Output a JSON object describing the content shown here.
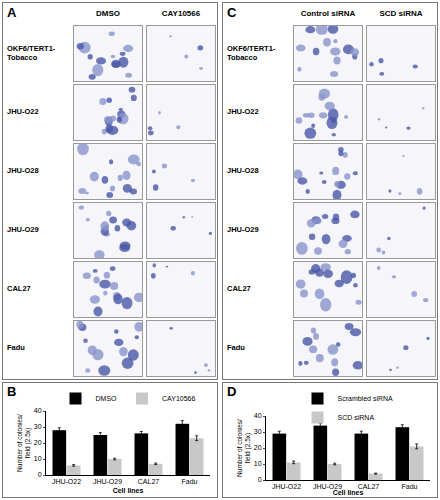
{
  "image_panels": [
    {
      "panel": "A",
      "columns": [
        "DMSO",
        "CAY10566"
      ],
      "rows": [
        "OKF6/TERT1-Tobacco",
        "JHU-O22",
        "JHU-O28",
        "JHU-O29",
        "CAL27",
        "Fadu"
      ]
    },
    {
      "panel": "C",
      "columns": [
        "Control siRNA",
        "SCD siRNA"
      ],
      "rows": [
        "OKF6/TERT1-Tobacco",
        "JHU-O22",
        "JHU-O28",
        "JHU-O29",
        "CAL27",
        "Fadu"
      ]
    }
  ],
  "chart_data": [
    {
      "panel": "B",
      "type": "bar",
      "categories": [
        "JHU-O22",
        "JHU-O29",
        "CAL27",
        "Fadu"
      ],
      "x_label": "Cell lines",
      "y_label": [
        "Number of colonies/",
        "field (2.5x)"
      ],
      "series": [
        {
          "name": "DMSO",
          "color": "#000000",
          "values": [
            28,
            25,
            26,
            32
          ],
          "errors": [
            1.5,
            1.5,
            1.2,
            2
          ]
        },
        {
          "name": "CAY10566",
          "color": "#c8c8c8",
          "values": [
            6,
            10,
            7,
            23
          ],
          "errors": [
            0.5,
            0.5,
            0.5,
            1.5
          ]
        }
      ],
      "ylim": [
        0,
        40
      ],
      "yticks": [
        0,
        10,
        20,
        30,
        40
      ],
      "grid": false,
      "legend": "top"
    },
    {
      "panel": "D",
      "type": "bar",
      "categories": [
        "JHU-O22",
        "JHU-O29",
        "CAL27",
        "Fadu"
      ],
      "x_label": "Cell lines",
      "y_label": [
        "Number of colonies/",
        "field (2.5x)"
      ],
      "series": [
        {
          "name": "Scrambled siRNA",
          "color": "#000000",
          "values": [
            29,
            34,
            29,
            33
          ],
          "errors": [
            1.5,
            1.5,
            1.5,
            1.5
          ]
        },
        {
          "name": "SCD siRNA",
          "color": "#c8c8c8",
          "values": [
            11,
            10,
            4,
            21
          ],
          "errors": [
            0.8,
            0.5,
            0.3,
            1.5
          ]
        }
      ],
      "ylim": [
        0,
        40
      ],
      "yticks": [
        0,
        10,
        20,
        30,
        40
      ],
      "grid": false,
      "legend": "top"
    }
  ]
}
